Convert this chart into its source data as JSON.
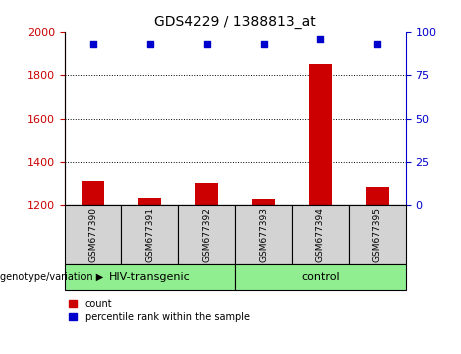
{
  "title": "GDS4229 / 1388813_at",
  "samples": [
    "GSM677390",
    "GSM677391",
    "GSM677392",
    "GSM677393",
    "GSM677394",
    "GSM677395"
  ],
  "count_values": [
    1310,
    1235,
    1305,
    1230,
    1850,
    1285
  ],
  "percentile_values": [
    93,
    93,
    93,
    93,
    96,
    93
  ],
  "ylim_left": [
    1200,
    2000
  ],
  "ylim_right": [
    0,
    100
  ],
  "yticks_left": [
    1200,
    1400,
    1600,
    1800,
    2000
  ],
  "yticks_right": [
    0,
    25,
    50,
    75,
    100
  ],
  "bar_color": "#cc0000",
  "dot_color": "#0000cc",
  "left_tick_color": "#cc0000",
  "right_tick_color": "#0000cc",
  "sample_box_color": "#d3d3d3",
  "group1_label": "HIV-transgenic",
  "group2_label": "control",
  "group_color": "#90ee90",
  "genotype_label": "genotype/variation ▶",
  "legend_items": [
    "count",
    "percentile rank within the sample"
  ],
  "title_fontsize": 10,
  "tick_fontsize": 8,
  "label_fontsize": 7
}
